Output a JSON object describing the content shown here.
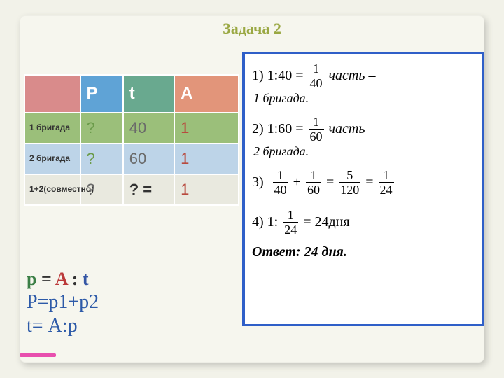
{
  "colors": {
    "page_bg": "#f2f2e9",
    "card_bg": "#f6f6ee",
    "title": "#9aa843",
    "table_border": "#ffffff",
    "th_rowhead_bg": "#d98b8b",
    "th_P_bg": "#5fa3d6",
    "th_t_bg": "#69a98f",
    "th_A_bg": "#e2957a",
    "row1_bg": "#9bbf7a",
    "row2_bg": "#bdd4e8",
    "row3_bg": "#e9e9df",
    "cell_gray_text": "#6a6a6a",
    "cell_dark_text": "#333333",
    "p_green": "#6b9b4a",
    "col_A_red": "#b84a3e",
    "formula_p": "#3b7f46",
    "formula_A": "#bb3a3a",
    "formula_t": "#3556a4",
    "formula_blue": "#2d5aa8",
    "solution_border": "#2f5fc8",
    "solution_bg": "#ffffff",
    "pink_bar": "#e84fae"
  },
  "title": "Задача 2",
  "table": {
    "columns": [
      "",
      "P",
      "t",
      "A"
    ],
    "col_widths": [
      "26%",
      "20%",
      "24%",
      "30%"
    ],
    "header_colors": [
      "th_rowhead_bg",
      "th_P_bg",
      "th_t_bg",
      "th_A_bg"
    ],
    "header_text_colors": [
      "#333333",
      "#ffffff",
      "#ffffff",
      "#ffffff"
    ],
    "rows": [
      {
        "label": "1 бригада",
        "bg": "row1_bg",
        "P": {
          "text": "?",
          "color": "p_green"
        },
        "t": {
          "text": "40",
          "color": "cell_gray_text"
        },
        "A": {
          "text": "1",
          "color": "col_A_red"
        }
      },
      {
        "label": "2 бригада",
        "bg": "row2_bg",
        "P": {
          "text": "?",
          "color": "p_green"
        },
        "t": {
          "text": "60",
          "color": "cell_gray_text"
        },
        "A": {
          "text": "1",
          "color": "col_A_red"
        }
      },
      {
        "label": "1+2(совместно)",
        "bg": "row3_bg",
        "P": {
          "text": "?",
          "color": "cell_gray_text"
        },
        "t": {
          "text": "? =",
          "color": "cell_dark_text",
          "bold": true
        },
        "A": {
          "text": "1",
          "color": "col_A_red"
        }
      }
    ]
  },
  "formulas": {
    "line1": {
      "parts": [
        {
          "text": "p",
          "color": "formula_p"
        },
        {
          "text": " = ",
          "color": "#333"
        },
        {
          "text": "A",
          "color": "formula_A"
        },
        {
          "text": " : ",
          "color": "#333"
        },
        {
          "text": "t",
          "color": "formula_t"
        }
      ]
    },
    "line2": {
      "text": "P=p1+p2",
      "color": "formula_blue"
    },
    "line3": {
      "text": "t= А:р",
      "color": "formula_blue"
    }
  },
  "solution": {
    "eq1": {
      "lead": "1) 1:40 =",
      "num": "1",
      "den": "40",
      "tail": "часть –"
    },
    "cap1": "1 бригада.",
    "eq2": {
      "lead": "2) 1:60 =",
      "num": "1",
      "den": "60",
      "tail": "часть –"
    },
    "cap2": "2 бригада.",
    "eq3": {
      "lead": "3)",
      "f1": {
        "num": "1",
        "den": "40"
      },
      "plus": "+",
      "f2": {
        "num": "1",
        "den": "60"
      },
      "eq": "=",
      "f3": {
        "num": "5",
        "den": "120"
      },
      "eq2": "=",
      "f4": {
        "num": "1",
        "den": "24"
      }
    },
    "eq4": {
      "lead": "4) 1:",
      "num": "1",
      "den": "24",
      "tail": "= 24дня"
    },
    "answer": "Ответ: 24 дня."
  },
  "pink_bar": true
}
